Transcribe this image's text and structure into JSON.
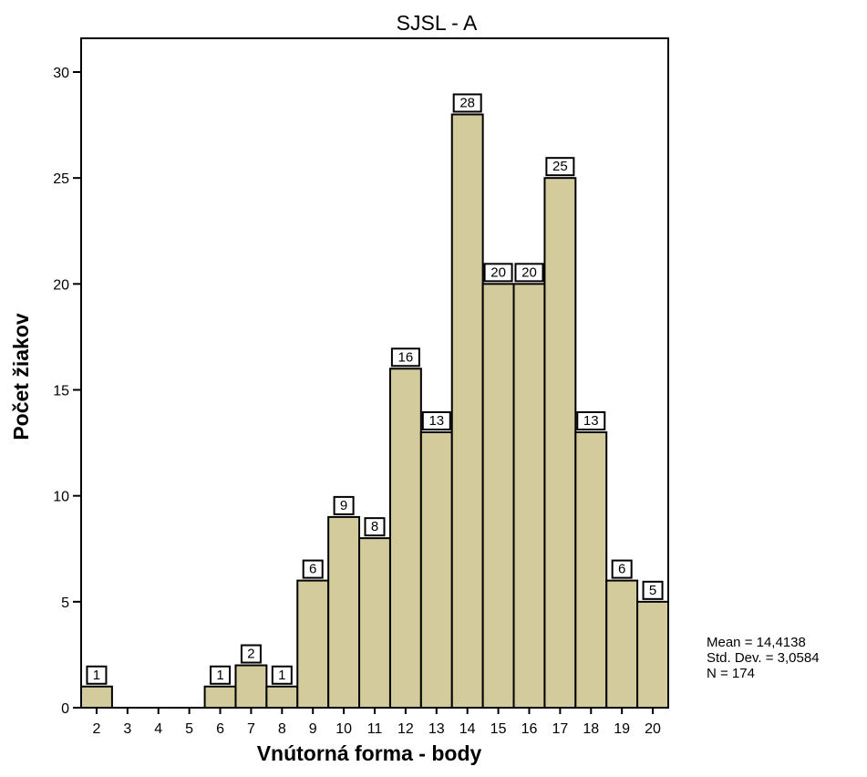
{
  "chart_data": {
    "type": "bar",
    "title": "SJSL - A",
    "xlabel": "Vnútorná forma - body",
    "ylabel": "Počet žiakov",
    "categories": [
      "2",
      "3",
      "4",
      "5",
      "6",
      "7",
      "8",
      "9",
      "10",
      "11",
      "12",
      "13",
      "14",
      "15",
      "16",
      "17",
      "18",
      "19",
      "20"
    ],
    "values": [
      1,
      0,
      0,
      0,
      1,
      2,
      1,
      6,
      9,
      8,
      16,
      13,
      28,
      20,
      20,
      25,
      13,
      6,
      5
    ],
    "ylim": [
      0,
      30
    ],
    "yticks": [
      0,
      5,
      10,
      15,
      20,
      25,
      30
    ],
    "data_labels": true,
    "grid": false,
    "bar_color": "#d3cb9b",
    "stats": {
      "mean": "Mean = 14,4138",
      "std": "Std. Dev. = 3,0584",
      "n": "N = 174"
    }
  }
}
